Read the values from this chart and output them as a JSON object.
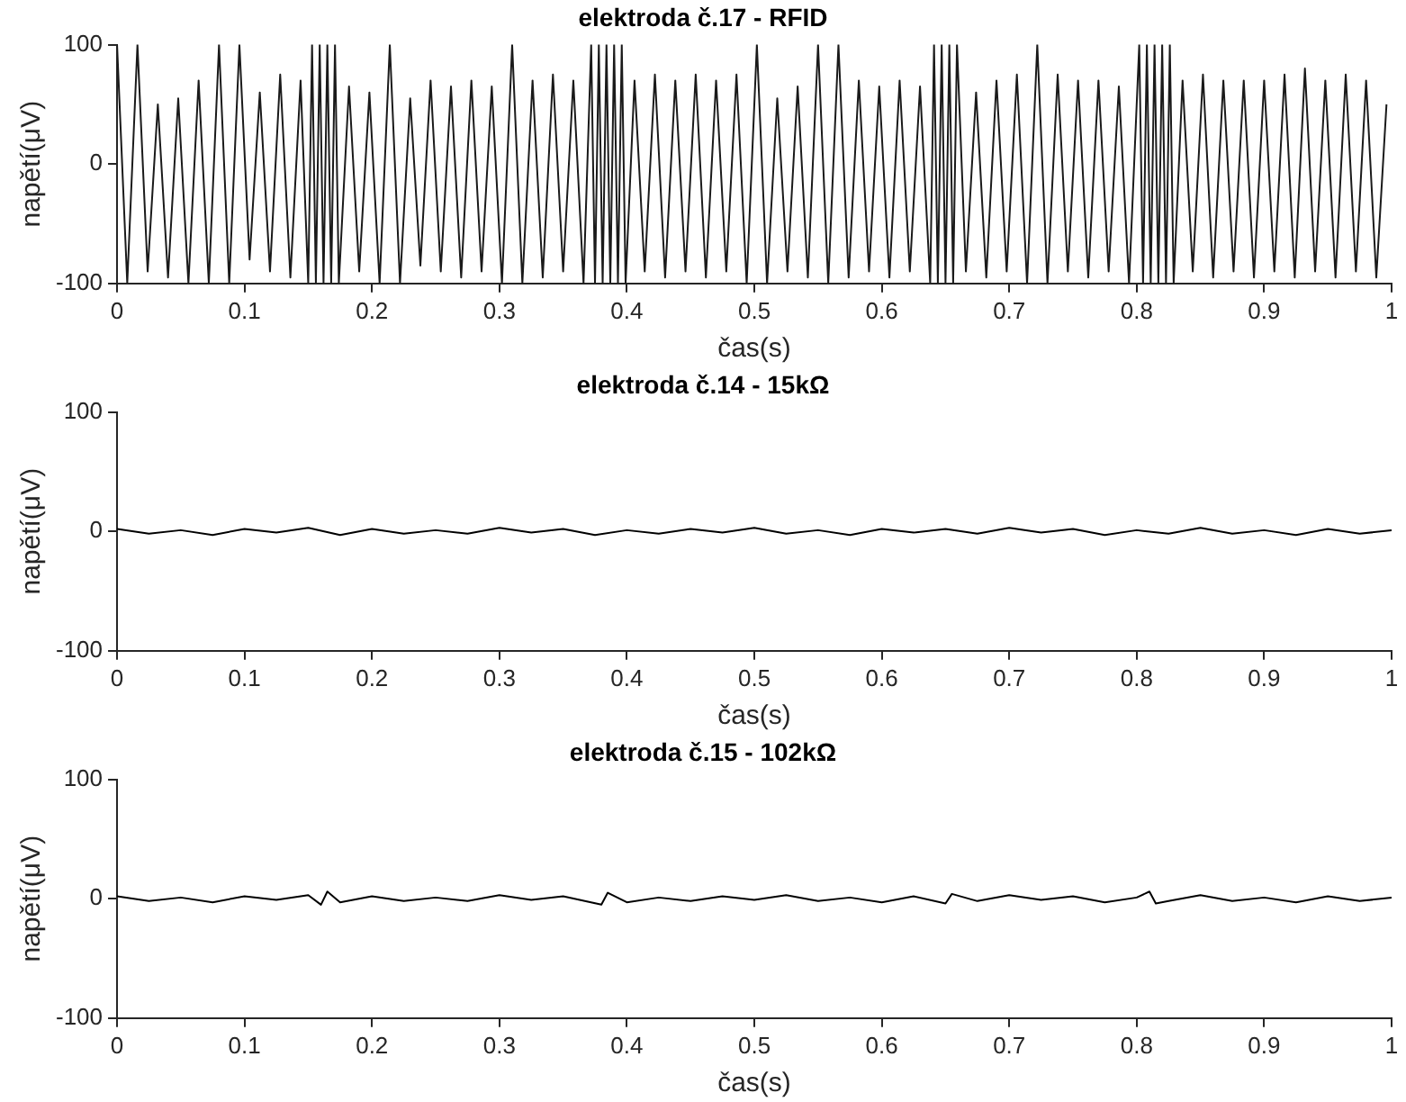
{
  "chart_data": [
    {
      "type": "line",
      "title": "elektroda č.17 - RFID",
      "xlabel": "čas(s)",
      "ylabel": "napětí(μV)",
      "xlim": [
        0,
        1
      ],
      "ylim": [
        -100,
        100
      ],
      "xticks": [
        0,
        0.1,
        0.2,
        0.3,
        0.4,
        0.5,
        0.6,
        0.7,
        0.8,
        0.9,
        1
      ],
      "yticks": [
        -100,
        0,
        100
      ],
      "marker": "none",
      "series": [
        {
          "color": "#1a1a1a",
          "x": [
            0,
            0.008,
            0.016,
            0.024,
            0.032,
            0.04,
            0.048,
            0.056,
            0.064,
            0.072,
            0.08,
            0.088,
            0.096,
            0.104,
            0.112,
            0.12,
            0.128,
            0.136,
            0.144,
            0.15,
            0.153,
            0.156,
            0.159,
            0.162,
            0.165,
            0.168,
            0.171,
            0.174,
            0.182,
            0.19,
            0.198,
            0.206,
            0.214,
            0.222,
            0.23,
            0.238,
            0.246,
            0.254,
            0.262,
            0.27,
            0.278,
            0.286,
            0.294,
            0.302,
            0.31,
            0.318,
            0.326,
            0.334,
            0.342,
            0.35,
            0.358,
            0.366,
            0.372,
            0.375,
            0.378,
            0.381,
            0.384,
            0.387,
            0.39,
            0.393,
            0.396,
            0.399,
            0.406,
            0.414,
            0.422,
            0.43,
            0.438,
            0.446,
            0.454,
            0.462,
            0.47,
            0.478,
            0.486,
            0.494,
            0.502,
            0.51,
            0.518,
            0.526,
            0.534,
            0.542,
            0.55,
            0.558,
            0.566,
            0.574,
            0.582,
            0.59,
            0.598,
            0.606,
            0.614,
            0.622,
            0.63,
            0.638,
            0.641,
            0.644,
            0.647,
            0.65,
            0.653,
            0.656,
            0.659,
            0.666,
            0.674,
            0.682,
            0.69,
            0.698,
            0.706,
            0.714,
            0.722,
            0.73,
            0.738,
            0.746,
            0.754,
            0.762,
            0.77,
            0.778,
            0.786,
            0.794,
            0.802,
            0.805,
            0.808,
            0.811,
            0.814,
            0.817,
            0.82,
            0.823,
            0.826,
            0.829,
            0.836,
            0.844,
            0.852,
            0.86,
            0.868,
            0.876,
            0.884,
            0.892,
            0.9,
            0.908,
            0.916,
            0.924,
            0.932,
            0.94,
            0.948,
            0.956,
            0.964,
            0.972,
            0.98,
            0.988,
            0.996
          ],
          "values": [
            100,
            -100,
            100,
            -90,
            50,
            -95,
            55,
            -100,
            70,
            -100,
            100,
            -100,
            100,
            -80,
            60,
            -90,
            75,
            -95,
            70,
            -100,
            100,
            -100,
            100,
            -100,
            100,
            -100,
            100,
            -100,
            65,
            -90,
            60,
            -100,
            100,
            -100,
            55,
            -85,
            70,
            -90,
            65,
            -95,
            70,
            -90,
            65,
            -100,
            100,
            -100,
            70,
            -95,
            75,
            -90,
            70,
            -100,
            100,
            -100,
            100,
            -100,
            100,
            -100,
            100,
            -100,
            100,
            -100,
            70,
            -90,
            75,
            -95,
            70,
            -90,
            75,
            -95,
            70,
            -90,
            75,
            -100,
            100,
            -100,
            55,
            -90,
            65,
            -95,
            100,
            -100,
            100,
            -95,
            70,
            -90,
            65,
            -95,
            70,
            -90,
            65,
            -100,
            100,
            -100,
            100,
            -100,
            100,
            -100,
            100,
            -90,
            60,
            -95,
            70,
            -90,
            75,
            -100,
            100,
            -100,
            75,
            -90,
            70,
            -95,
            70,
            -90,
            65,
            -100,
            100,
            -100,
            100,
            -100,
            100,
            -100,
            100,
            -100,
            100,
            -100,
            70,
            -90,
            75,
            -95,
            70,
            -90,
            70,
            -95,
            70,
            -90,
            75,
            -95,
            80,
            -90,
            70,
            -95,
            75,
            -90,
            70,
            -95,
            50
          ]
        }
      ]
    },
    {
      "type": "line",
      "title": "elektroda č.14 - 15kΩ",
      "xlabel": "čas(s)",
      "ylabel": "napětí(μV)",
      "xlim": [
        0,
        1
      ],
      "ylim": [
        -100,
        100
      ],
      "xticks": [
        0,
        0.1,
        0.2,
        0.3,
        0.4,
        0.5,
        0.6,
        0.7,
        0.8,
        0.9,
        1
      ],
      "yticks": [
        -100,
        0,
        100
      ],
      "marker": "none",
      "series": [
        {
          "color": "#000000",
          "x": [
            0,
            0.025,
            0.05,
            0.075,
            0.1,
            0.125,
            0.15,
            0.175,
            0.2,
            0.225,
            0.25,
            0.275,
            0.3,
            0.325,
            0.35,
            0.375,
            0.4,
            0.425,
            0.45,
            0.475,
            0.5,
            0.525,
            0.55,
            0.575,
            0.6,
            0.625,
            0.65,
            0.675,
            0.7,
            0.725,
            0.75,
            0.775,
            0.8,
            0.825,
            0.85,
            0.875,
            0.9,
            0.925,
            0.95,
            0.975,
            1
          ],
          "values": [
            2,
            -2,
            1,
            -3,
            2,
            -1,
            3,
            -3,
            2,
            -2,
            1,
            -2,
            3,
            -1,
            2,
            -3,
            1,
            -2,
            2,
            -1,
            3,
            -2,
            1,
            -3,
            2,
            -1,
            2,
            -2,
            3,
            -1,
            2,
            -3,
            1,
            -2,
            3,
            -2,
            1,
            -3,
            2,
            -2,
            1
          ]
        }
      ]
    },
    {
      "type": "line",
      "title": "elektroda č.15 - 102kΩ",
      "xlabel": "čas(s)",
      "ylabel": "napětí(μV)",
      "xlim": [
        0,
        1
      ],
      "ylim": [
        -100,
        100
      ],
      "xticks": [
        0,
        0.1,
        0.2,
        0.3,
        0.4,
        0.5,
        0.6,
        0.7,
        0.8,
        0.9,
        1
      ],
      "yticks": [
        -100,
        0,
        100
      ],
      "marker": "none",
      "series": [
        {
          "color": "#000000",
          "x": [
            0,
            0.025,
            0.05,
            0.075,
            0.1,
            0.125,
            0.15,
            0.16,
            0.165,
            0.175,
            0.2,
            0.225,
            0.25,
            0.275,
            0.3,
            0.325,
            0.35,
            0.38,
            0.385,
            0.4,
            0.425,
            0.45,
            0.475,
            0.5,
            0.525,
            0.55,
            0.575,
            0.6,
            0.625,
            0.65,
            0.655,
            0.675,
            0.7,
            0.725,
            0.75,
            0.775,
            0.8,
            0.81,
            0.815,
            0.825,
            0.85,
            0.875,
            0.9,
            0.925,
            0.95,
            0.975,
            1
          ],
          "values": [
            2,
            -2,
            1,
            -3,
            2,
            -1,
            3,
            -5,
            6,
            -3,
            2,
            -2,
            1,
            -2,
            3,
            -1,
            2,
            -5,
            5,
            -3,
            1,
            -2,
            2,
            -1,
            3,
            -2,
            1,
            -3,
            2,
            -4,
            4,
            -2,
            3,
            -1,
            2,
            -3,
            1,
            6,
            -4,
            -2,
            3,
            -2,
            1,
            -3,
            2,
            -2,
            1
          ]
        }
      ]
    }
  ]
}
